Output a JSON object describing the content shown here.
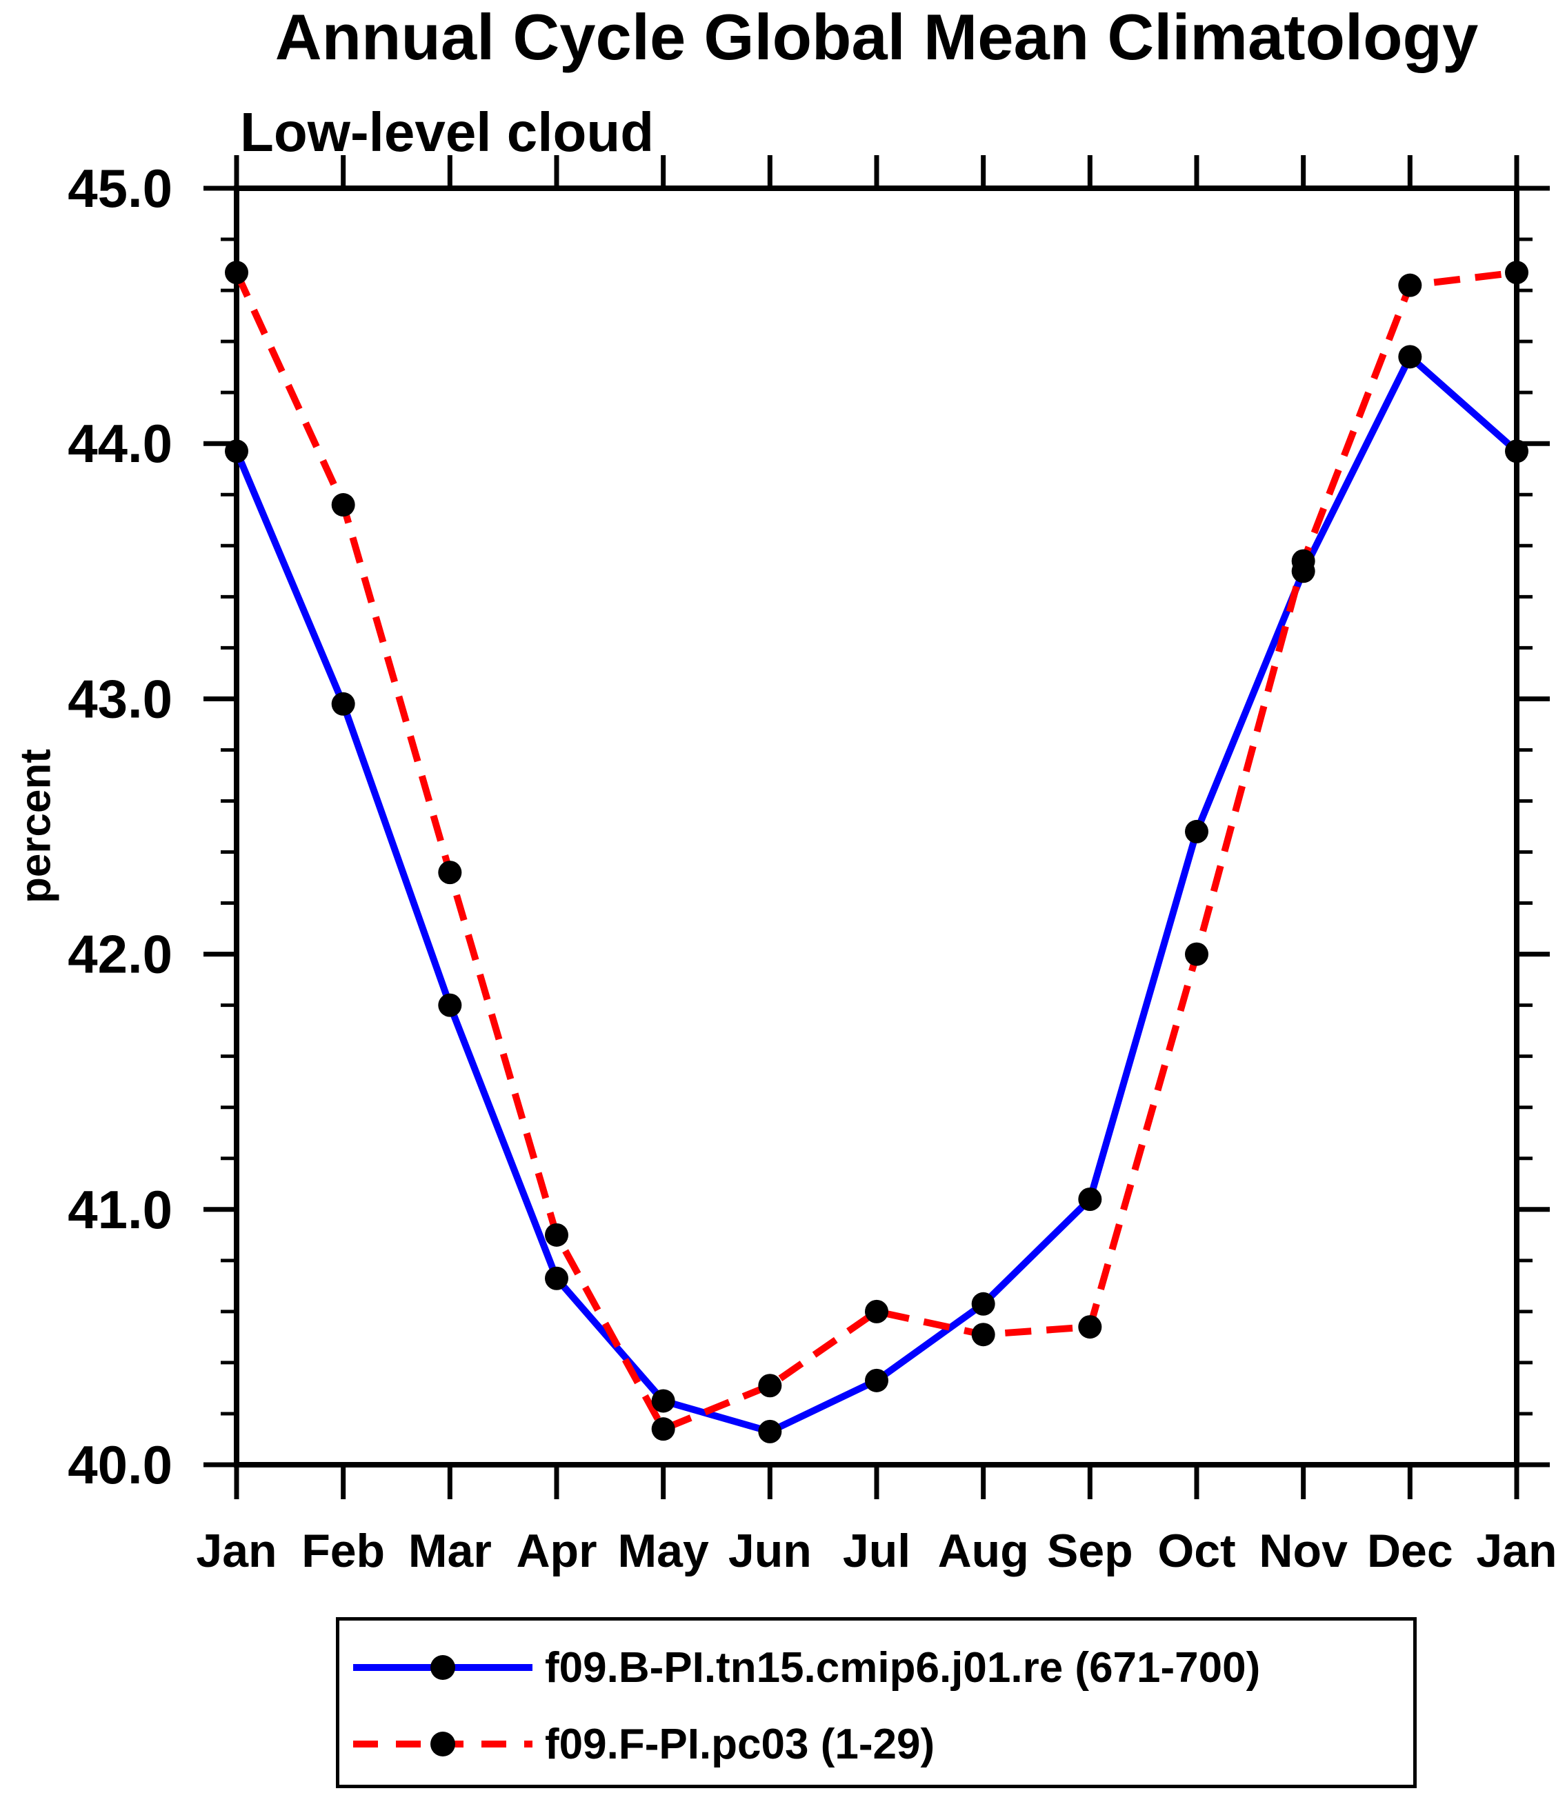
{
  "chart_data": {
    "type": "line",
    "title": "Annual Cycle Global Mean Climatology",
    "subtitle": "Low-level cloud",
    "ylabel": "percent",
    "xlabel": "",
    "categories": [
      "Jan",
      "Feb",
      "Mar",
      "Apr",
      "May",
      "Jun",
      "Jul",
      "Aug",
      "Sep",
      "Oct",
      "Nov",
      "Dec",
      "Jan"
    ],
    "ylim": [
      40.0,
      45.0
    ],
    "ytick_interval": 1.0,
    "yminor_interval": 0.2,
    "ytick_labels": [
      "40.0",
      "41.0",
      "42.0",
      "43.0",
      "44.0",
      "45.0"
    ],
    "grid": false,
    "legend_position": "bottom",
    "marker": "filled-circle",
    "marker_color": "#000000",
    "axis_color": "#000000",
    "series": [
      {
        "name": "f09.B-PI.tn15.cmip6.j01.re (671-700)",
        "color": "#0000ff",
        "style": "solid",
        "values": [
          43.97,
          42.98,
          41.8,
          40.73,
          40.25,
          40.13,
          40.33,
          40.63,
          41.04,
          42.48,
          43.5,
          44.34,
          43.97
        ]
      },
      {
        "name": "f09.F-PI.pc03 (1-29)",
        "color": "#ff0000",
        "style": "dashed",
        "values": [
          44.67,
          43.76,
          42.32,
          40.9,
          40.14,
          40.31,
          40.6,
          40.51,
          40.54,
          42.0,
          43.54,
          44.62,
          44.67
        ]
      }
    ]
  }
}
